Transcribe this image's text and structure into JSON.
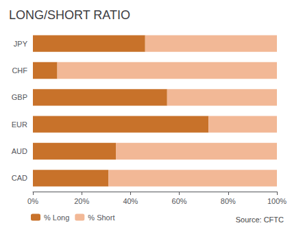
{
  "chart_data": {
    "type": "bar",
    "title": "LONG/SHORT RATIO",
    "orientation": "horizontal",
    "stacked": true,
    "categories": [
      "JPY",
      "CHF",
      "GBP",
      "EUR",
      "AUD",
      "CAD"
    ],
    "series": [
      {
        "name": "% Long",
        "color": "#C8722A",
        "values": [
          46,
          10,
          55,
          72,
          34,
          31
        ]
      },
      {
        "name": "% Short",
        "color": "#F2B896",
        "values": [
          54,
          90,
          45,
          28,
          66,
          69
        ]
      }
    ],
    "xlim": [
      0,
      100
    ],
    "xticks": [
      {
        "value": 0,
        "label": "0%"
      },
      {
        "value": 20,
        "label": "20%"
      },
      {
        "value": 40,
        "label": "40%"
      },
      {
        "value": 60,
        "label": "60%"
      },
      {
        "value": 80,
        "label": "80%"
      },
      {
        "value": 100,
        "label": "100%"
      }
    ],
    "grid": false,
    "legend": "lower left",
    "annotations": [
      "Source: CFTC"
    ]
  }
}
